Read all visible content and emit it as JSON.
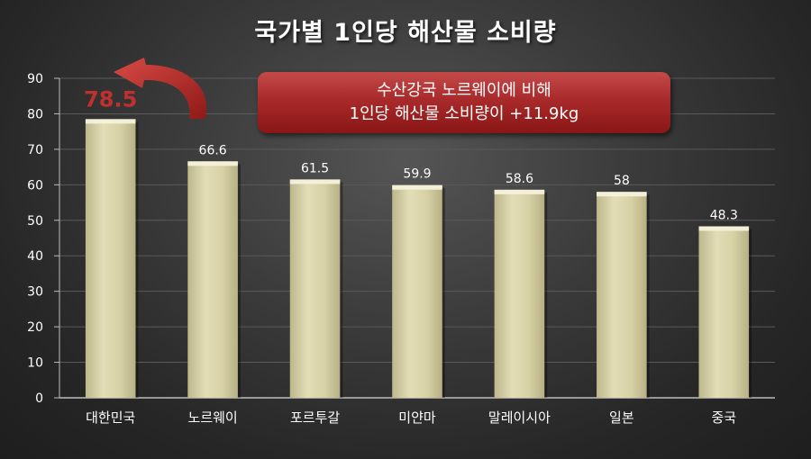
{
  "colors": {
    "bar": "#d9d4a8",
    "bar_top": "#f4f1dc",
    "highlight_value": "#c0302f",
    "callout": "#a92a2a",
    "text": "#ffffff"
  },
  "callout": {
    "line1": "수산강국 노르웨이에 비해",
    "line2": "1인당 해산물 소비량이 +11.9kg"
  },
  "chart_data": {
    "type": "bar",
    "title": "국가별 1인당 해산물 소비량",
    "categories": [
      "대한민국",
      "노르웨이",
      "포르투갈",
      "미얀마",
      "말레이시아",
      "일본",
      "중국"
    ],
    "values": [
      78.5,
      66.6,
      61.5,
      59.9,
      58.6,
      58,
      48.3
    ],
    "value_labels": [
      "78.5",
      "66.6",
      "61.5",
      "59.9",
      "58.6",
      "58",
      "48.3"
    ],
    "highlight_index": 0,
    "ylim": [
      0,
      90
    ],
    "yticks": [
      0,
      10,
      20,
      30,
      40,
      50,
      60,
      70,
      80,
      90
    ],
    "grid": true,
    "xlabel": "",
    "ylabel": ""
  }
}
